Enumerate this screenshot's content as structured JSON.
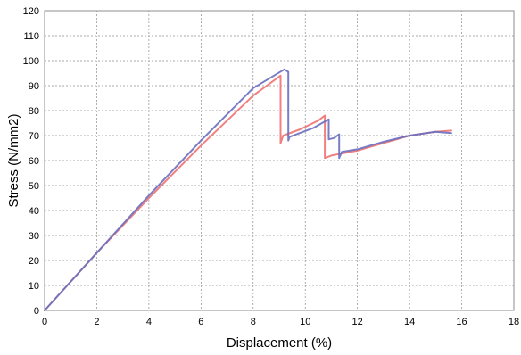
{
  "chart_data": {
    "type": "line",
    "title": "",
    "xlabel": "Displacement (%)",
    "ylabel": "Stress (N/mm2)",
    "xlim": [
      0,
      18
    ],
    "ylim": [
      0,
      120
    ],
    "x_ticks": [
      "0",
      "2",
      "4",
      "6",
      "8",
      "10",
      "12",
      "14",
      "16",
      "18"
    ],
    "y_ticks": [
      "0",
      "10",
      "20",
      "30",
      "40",
      "50",
      "60",
      "70",
      "80",
      "90",
      "100",
      "110",
      "120"
    ],
    "grid": true,
    "legend": "none",
    "series": [
      {
        "color": "#f07a7a",
        "points": [
          [
            0,
            0
          ],
          [
            2,
            23
          ],
          [
            4,
            45
          ],
          [
            6,
            66
          ],
          [
            8,
            86
          ],
          [
            9.05,
            94
          ],
          [
            9.05,
            67
          ],
          [
            9.15,
            70
          ],
          [
            9.8,
            72.5
          ],
          [
            10.5,
            76
          ],
          [
            10.75,
            78
          ],
          [
            10.75,
            61
          ],
          [
            11,
            62
          ],
          [
            12,
            64
          ],
          [
            13,
            67
          ],
          [
            14,
            70
          ],
          [
            15,
            71.5
          ],
          [
            15.6,
            72
          ]
        ]
      },
      {
        "color": "#6a6fc0",
        "points": [
          [
            0,
            0
          ],
          [
            2,
            23
          ],
          [
            4,
            46
          ],
          [
            6,
            68
          ],
          [
            8,
            89
          ],
          [
            9.2,
            96.5
          ],
          [
            9.35,
            95.5
          ],
          [
            9.35,
            68
          ],
          [
            9.4,
            69.5
          ],
          [
            10.3,
            73
          ],
          [
            10.9,
            76.5
          ],
          [
            10.9,
            68.5
          ],
          [
            11.1,
            69
          ],
          [
            11.3,
            70.5
          ],
          [
            11.3,
            61
          ],
          [
            11.4,
            63.5
          ],
          [
            12,
            64.5
          ],
          [
            13,
            67.5
          ],
          [
            14,
            70
          ],
          [
            15,
            71.5
          ],
          [
            15.6,
            71
          ]
        ]
      }
    ]
  }
}
